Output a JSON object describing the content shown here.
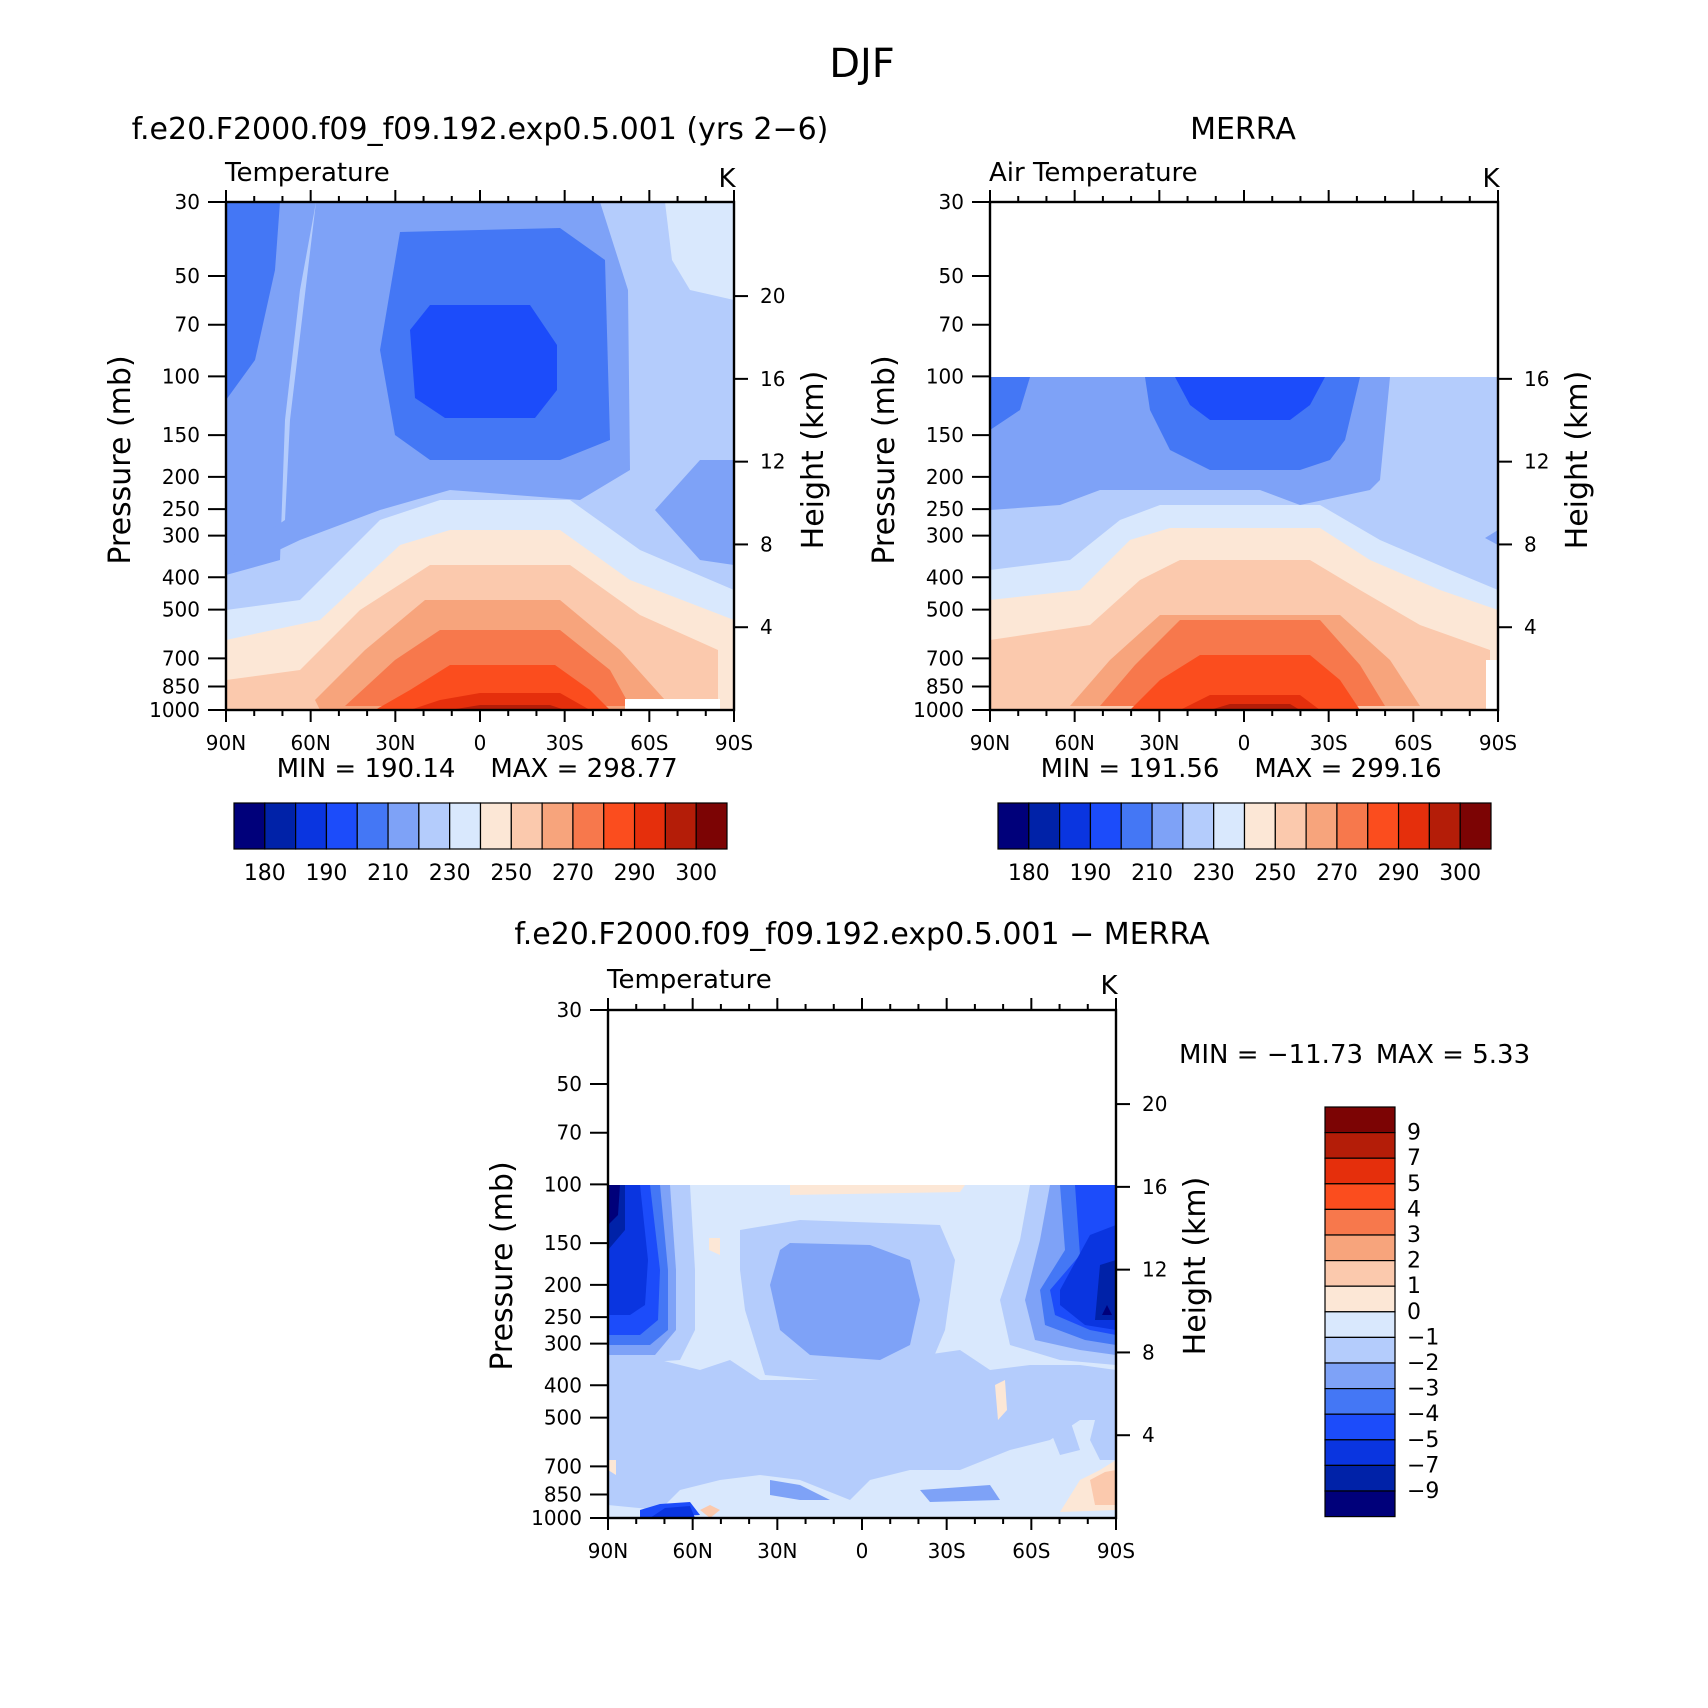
{
  "figure": {
    "title": "DJF"
  },
  "colors": {
    "abs_palette": [
      "#00007a",
      "#0022a8",
      "#0a35e0",
      "#1c4cfa",
      "#4477f5",
      "#7ea2f7",
      "#b4ccfc",
      "#d9e8fd",
      "#fce7d6",
      "#fbc9ad",
      "#f7a47c",
      "#f7784c",
      "#fb4d1e",
      "#e52f0c",
      "#b41d08",
      "#7c0404"
    ],
    "diff_palette": [
      "#00007a",
      "#0022a8",
      "#0a35e0",
      "#1c4cfa",
      "#4477f5",
      "#7ea2f7",
      "#b4ccfc",
      "#d9e8fd",
      "#fce7d6",
      "#fbc9ad",
      "#f7a47c",
      "#f7784c",
      "#fb4d1e",
      "#e52f0c",
      "#b41d08",
      "#7c0404"
    ]
  },
  "chart_data": [
    {
      "type": "heatmap",
      "panel_title": "f.e20.F2000.f09_f09.192.exp0.5.001 (yrs 2−6)",
      "variable": "Temperature",
      "units": "K",
      "xlabels": [
        "90N",
        "60N",
        "30N",
        "0",
        "30S",
        "60S",
        "90S"
      ],
      "lat_range": [
        90,
        -90
      ],
      "ylabel": "Pressure (mb)",
      "yticks": [
        "30",
        "50",
        "70",
        "100",
        "150",
        "200",
        "250",
        "300",
        "400",
        "500",
        "700",
        "850",
        "1000"
      ],
      "ylim": [
        30,
        1000
      ],
      "yscale": "log",
      "y2label": "Height (km)",
      "y2ticks": [
        "4",
        "8",
        "12",
        "16",
        "20"
      ],
      "min_label": "MIN = 190.14",
      "max_label": "MAX = 298.77",
      "min": 190.14,
      "max": 298.77,
      "levels": [
        180,
        185,
        190,
        200,
        210,
        220,
        230,
        240,
        250,
        260,
        270,
        280,
        290,
        295,
        300
      ],
      "colorbar_labels": [
        "180",
        "190",
        "210",
        "230",
        "250",
        "270",
        "290",
        "300"
      ],
      "has_data_above_100": true
    },
    {
      "type": "heatmap",
      "panel_title": "MERRA",
      "variable": "Air Temperature",
      "units": "K",
      "xlabels": [
        "90N",
        "60N",
        "30N",
        "0",
        "30S",
        "60S",
        "90S"
      ],
      "lat_range": [
        90,
        -90
      ],
      "ylabel": "Pressure (mb)",
      "yticks": [
        "30",
        "50",
        "70",
        "100",
        "150",
        "200",
        "250",
        "300",
        "400",
        "500",
        "700",
        "850",
        "1000"
      ],
      "ylim": [
        30,
        1000
      ],
      "yscale": "log",
      "y2label": "Height (km)",
      "y2ticks": [
        "4",
        "8",
        "12",
        "16"
      ],
      "min_label": "MIN = 191.56",
      "max_label": "MAX = 299.16",
      "min": 191.56,
      "max": 299.16,
      "levels": [
        180,
        185,
        190,
        200,
        210,
        220,
        230,
        240,
        250,
        260,
        270,
        280,
        290,
        295,
        300
      ],
      "colorbar_labels": [
        "180",
        "190",
        "210",
        "230",
        "250",
        "270",
        "290",
        "300"
      ],
      "has_data_above_100": false
    },
    {
      "type": "heatmap",
      "panel_title": "f.e20.F2000.f09_f09.192.exp0.5.001 − MERRA",
      "variable": "Temperature",
      "units": "K",
      "xlabels": [
        "90N",
        "60N",
        "30N",
        "0",
        "30S",
        "60S",
        "90S"
      ],
      "lat_range": [
        90,
        -90
      ],
      "ylabel": "Pressure (mb)",
      "yticks": [
        "30",
        "50",
        "70",
        "100",
        "150",
        "200",
        "250",
        "300",
        "400",
        "500",
        "700",
        "850",
        "1000"
      ],
      "ylim": [
        30,
        1000
      ],
      "yscale": "log",
      "y2label": "Height (km)",
      "y2ticks": [
        "4",
        "8",
        "12",
        "16",
        "20"
      ],
      "min_label": "MIN = −11.73",
      "max_label": "MAX = 5.33",
      "min": -11.73,
      "max": 5.33,
      "levels": [
        -9,
        -7,
        -5,
        -4,
        -3,
        -2,
        -1,
        0,
        1,
        2,
        3,
        4,
        5,
        7,
        9
      ],
      "colorbar_labels": [
        "9",
        "7",
        "5",
        "4",
        "3",
        "2",
        "1",
        "0",
        "−1",
        "−2",
        "−3",
        "−4",
        "−5",
        "−7",
        "−9"
      ],
      "has_data_above_100": false
    }
  ]
}
